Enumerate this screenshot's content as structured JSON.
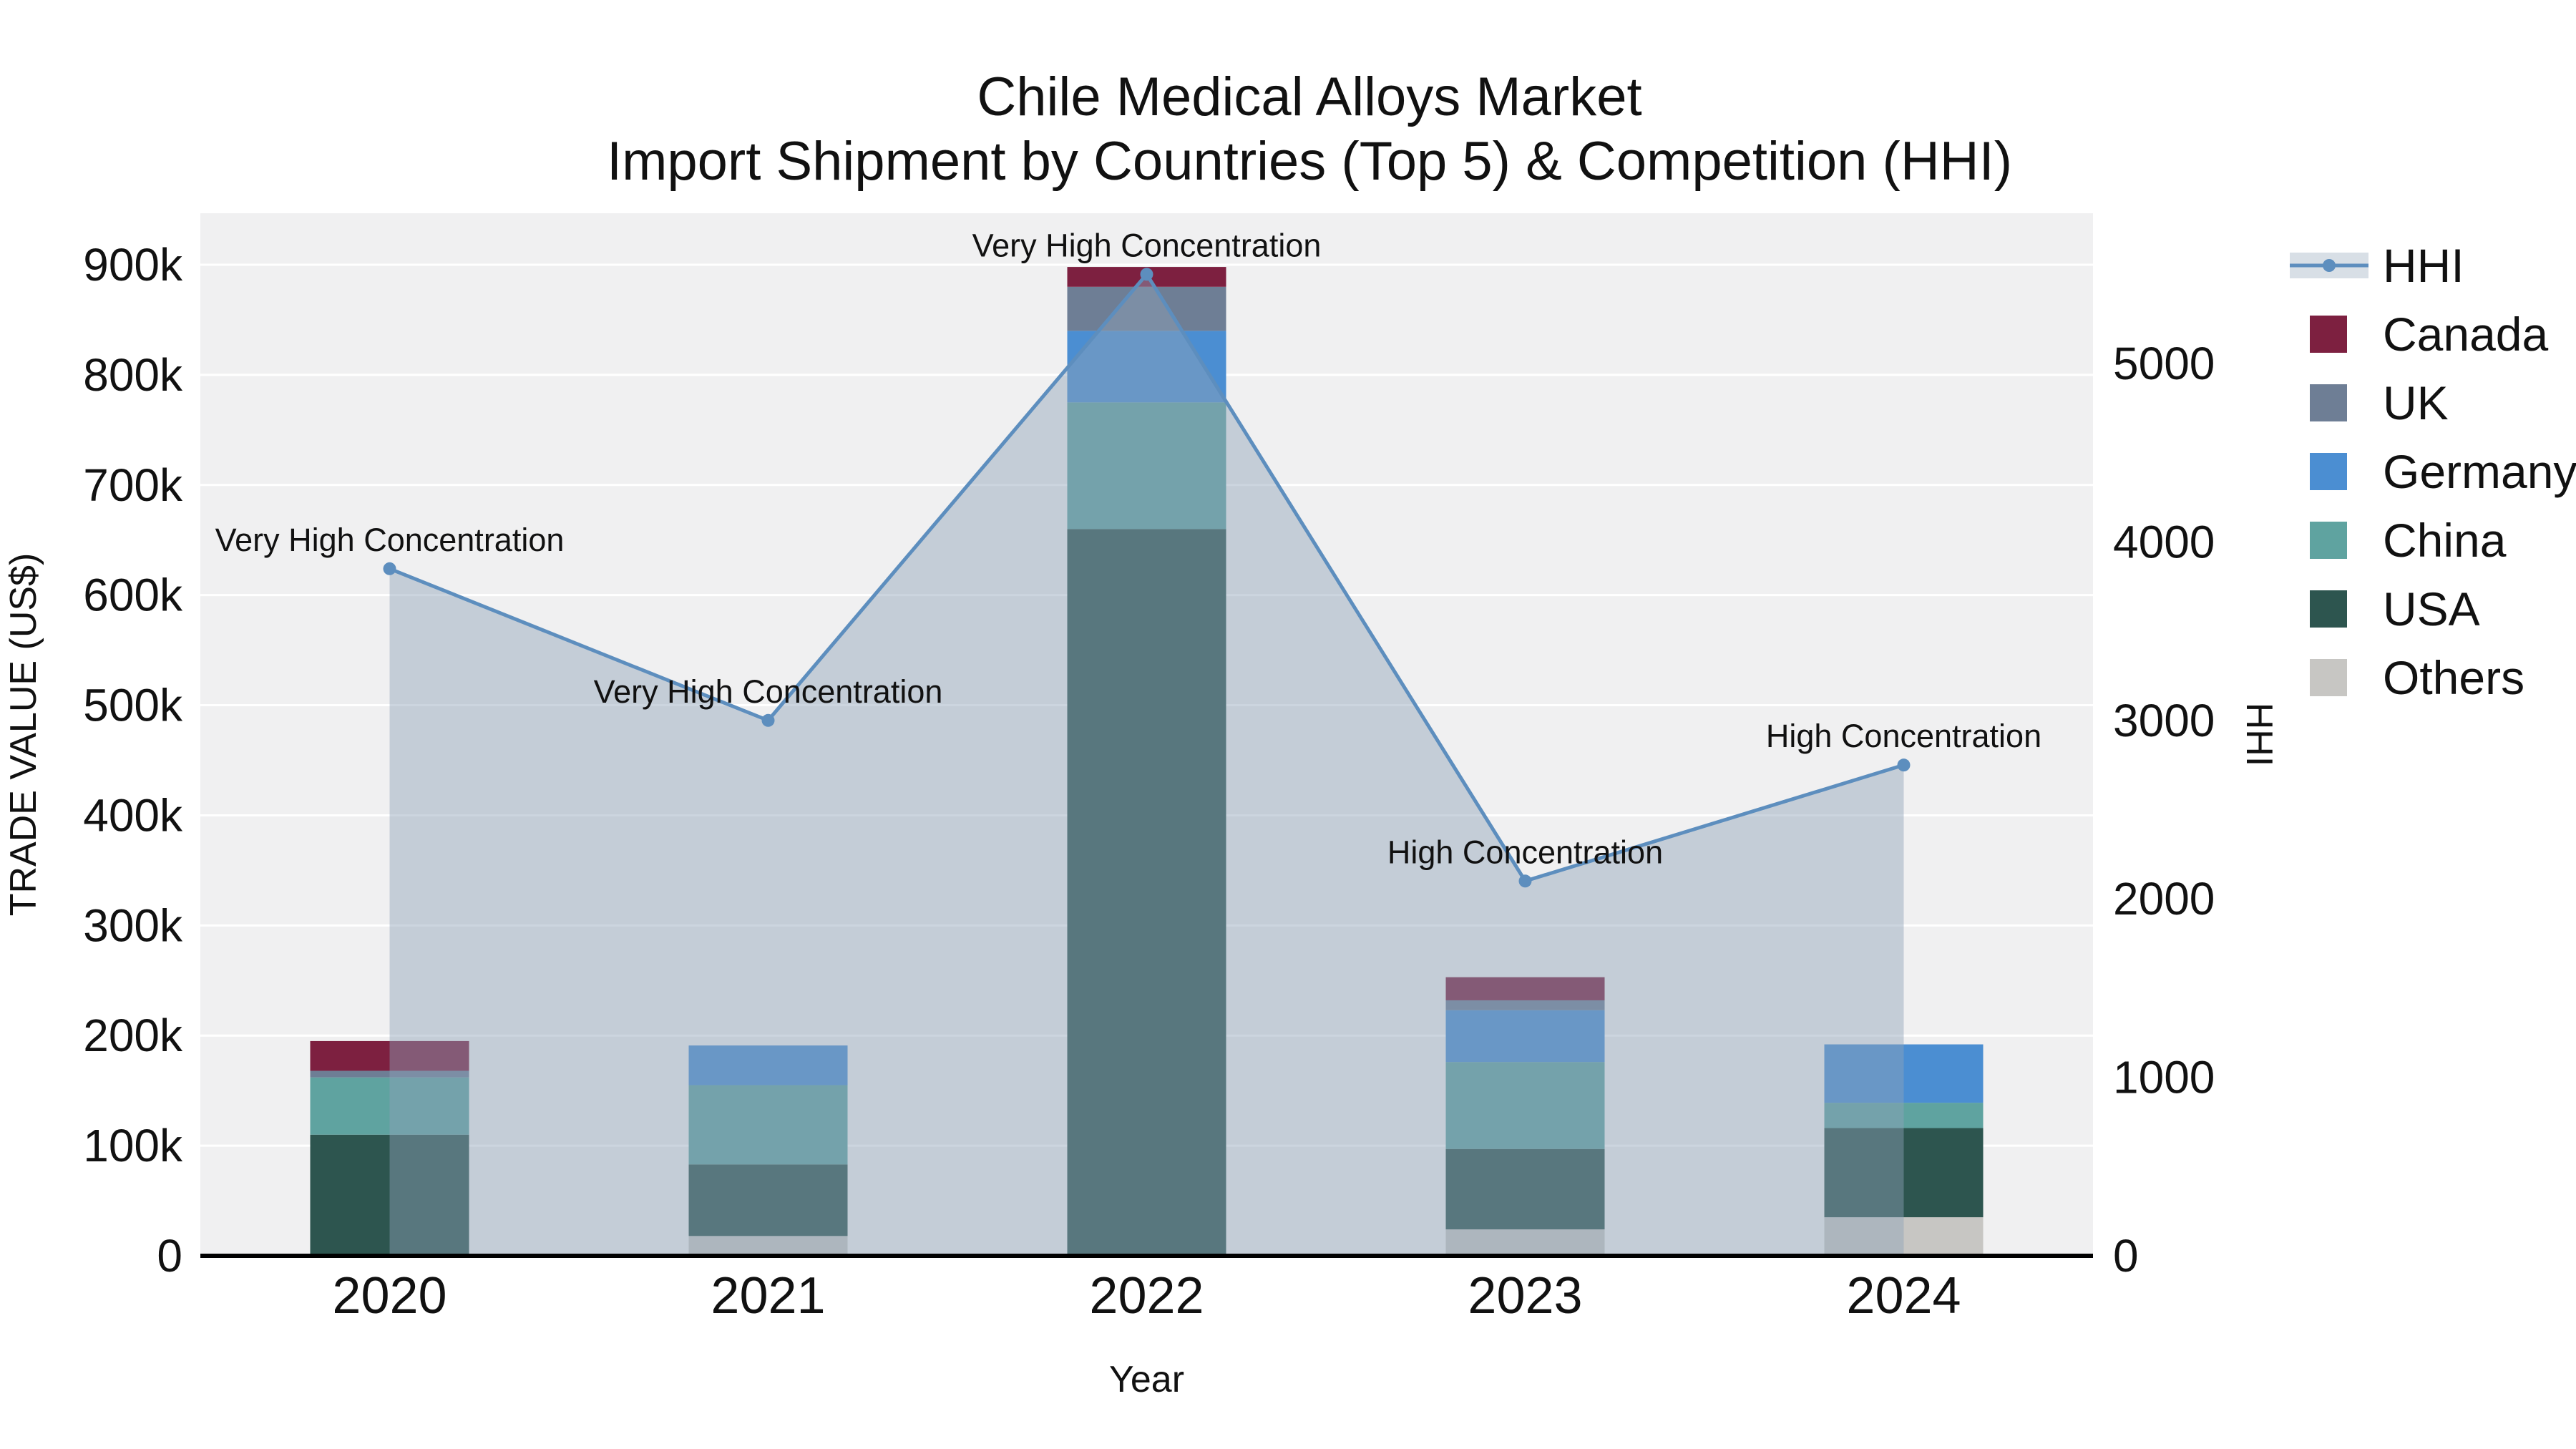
{
  "title": {
    "line1": "Chile Medical Alloys Market",
    "line2": "Import Shipment by Countries (Top 5) & Competition (HHI)"
  },
  "chart_data": {
    "type": "combo-stacked-bar-line",
    "title": "Chile Medical Alloys Market Import Shipment by Countries (Top 5) & Competition (HHI)",
    "xlabel": "Year",
    "ylabel_left": "TRADE VALUE (US$)",
    "ylabel_right": "HHI",
    "categories": [
      "2020",
      "2021",
      "2022",
      "2023",
      "2024"
    ],
    "y_left_ticks": {
      "labels": [
        "0",
        "100k",
        "200k",
        "300k",
        "400k",
        "500k",
        "600k",
        "700k",
        "800k",
        "900k"
      ],
      "values": [
        0,
        100000,
        200000,
        300000,
        400000,
        500000,
        600000,
        700000,
        800000,
        900000
      ]
    },
    "y_right_ticks": {
      "labels": [
        "0",
        "1000",
        "2000",
        "3000",
        "4000",
        "5000"
      ],
      "values": [
        0,
        1000,
        2000,
        3000,
        4000,
        5000
      ]
    },
    "ylim_left": [
      0,
      947000
    ],
    "ylim_right": [
      0,
      5843
    ],
    "grid": "horizontal-white",
    "plot_bg": "#f0f0f1",
    "series": [
      {
        "name": "Others",
        "color": "#c7c6c3",
        "values": [
          0,
          18000,
          0,
          24000,
          35000
        ]
      },
      {
        "name": "USA",
        "color": "#2d554f",
        "values": [
          110000,
          65000,
          660000,
          73000,
          81000
        ]
      },
      {
        "name": "China",
        "color": "#5fa3a0",
        "values": [
          52000,
          72000,
          115000,
          79000,
          23000
        ]
      },
      {
        "name": "Germany",
        "color": "#4b8ed2",
        "values": [
          0,
          36000,
          65000,
          47000,
          53000
        ]
      },
      {
        "name": "UK",
        "color": "#6e7e95",
        "values": [
          6000,
          0,
          40000,
          9000,
          0
        ]
      },
      {
        "name": "Canada",
        "color": "#7d2040",
        "values": [
          27000,
          0,
          18000,
          21000,
          0
        ]
      }
    ],
    "hhi": {
      "name": "HHI",
      "color": "#5d8ebe",
      "area_color": "#8fa2b8",
      "values": [
        3850,
        3000,
        5500,
        2100,
        2750
      ],
      "annotations": [
        "Very High Concentration",
        "Very High Concentration",
        "Very High Concentration",
        "High Concentration",
        "High Concentration"
      ]
    },
    "legend": {
      "position": "top-right-outside",
      "items": [
        "HHI",
        "Canada",
        "UK",
        "Germany",
        "China",
        "USA",
        "Others"
      ]
    }
  }
}
